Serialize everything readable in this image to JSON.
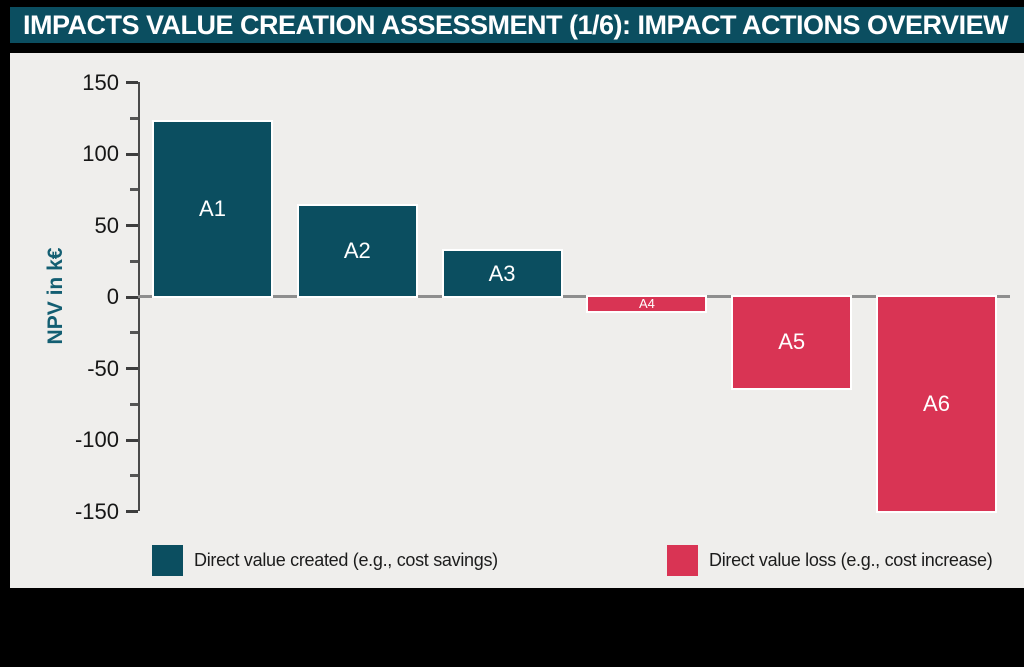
{
  "title": "IMPACTS VALUE CREATION ASSESSMENT (1/6): IMPACT ACTIONS OVERVIEW",
  "colors": {
    "title_bar_bg": "#0b4e60",
    "title_text": "#ffffff",
    "page_frame": "#000000",
    "panel_bg": "#efeeec",
    "positive_bar": "#0b4e60",
    "negative_bar": "#d93454",
    "axis": "#4a4a4a",
    "zero_line": "#8e8e8e",
    "tick_text": "#161616",
    "ylabel_text": "#135e72",
    "bar_label_text": "#ffffff"
  },
  "chart_data": {
    "type": "bar",
    "categories": [
      "A1",
      "A2",
      "A3",
      "A4",
      "A5",
      "A6"
    ],
    "values": [
      122,
      63,
      32,
      -10,
      -64,
      -150
    ],
    "title": "",
    "xlabel": "",
    "ylabel": "NPV in k€",
    "ylim": [
      -150,
      150
    ],
    "ytick_step": 50,
    "yminor_step": 25,
    "grid": false,
    "positive_color": "#0b4e60",
    "negative_color": "#d93454",
    "legend_position": "bottom",
    "legend": [
      {
        "label": "Direct value created (e.g., cost savings)",
        "color": "#0b4e60"
      },
      {
        "label": "Direct value loss (e.g., cost increase)",
        "color": "#d93454"
      }
    ]
  }
}
